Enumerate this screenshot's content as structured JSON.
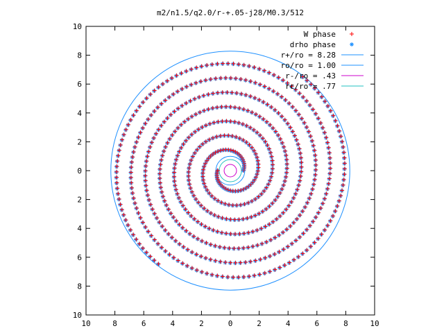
{
  "chart_data": {
    "type": "scatter",
    "title": "m2/n1.5/q2.0/r-+.05-j28/M0.3/512",
    "xlabel": "",
    "ylabel": "",
    "xlim": [
      -10,
      10
    ],
    "ylim": [
      -10,
      10
    ],
    "grid": false,
    "legend_position": "top-right",
    "x_tick_labels": [
      "10",
      "8",
      "6",
      "4",
      "2",
      "0",
      "2",
      "4",
      "6",
      "8",
      "10"
    ],
    "y_tick_labels": [
      "10",
      "8",
      "6",
      "4",
      "2",
      "0",
      "2",
      "4",
      "6",
      "8",
      "10"
    ],
    "ticks": [
      -10,
      -8,
      -6,
      -4,
      -2,
      0,
      2,
      4,
      6,
      8,
      10
    ],
    "spiral": {
      "arms": 2,
      "r_inner": 0.9,
      "r_outer": 8.2,
      "pitch_per_turn": 2.0
    },
    "series": [
      {
        "name": "W phase",
        "marker": "+",
        "color": "#ff0000"
      },
      {
        "name": "drho phase",
        "marker": "*",
        "color": "#1e90ff"
      }
    ],
    "circles": [
      {
        "name": "r+/ro = 8.28",
        "radius": 8.28,
        "color": "#1e90ff"
      },
      {
        "name": "ro/ro = 1.00",
        "radius": 1.0,
        "color": "#1e90ff"
      },
      {
        "name": "r-/ro =  .43",
        "radius": 0.43,
        "color": "#cc00cc"
      },
      {
        "name": "rc/ro =  .77",
        "radius": 0.77,
        "color": "#20c0c0"
      }
    ]
  }
}
